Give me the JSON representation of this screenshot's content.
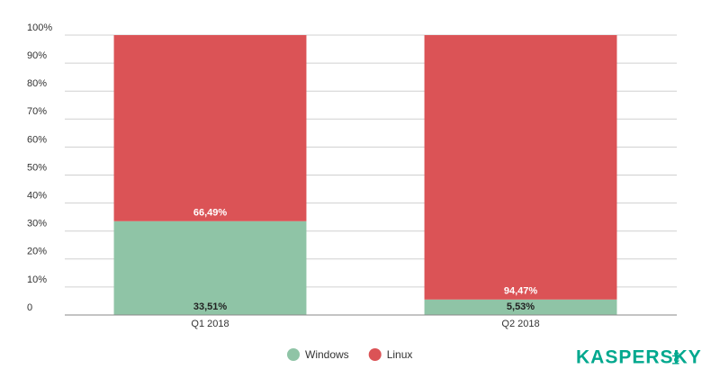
{
  "chart_data": {
    "type": "stacked_bar",
    "categories": [
      "Q1 2018",
      "Q2 2018"
    ],
    "series": [
      {
        "name": "Windows",
        "color": "#8fc4a6",
        "values": [
          33.51,
          5.53
        ],
        "value_labels": [
          "33,51%",
          "5,53%"
        ]
      },
      {
        "name": "Linux",
        "color": "#db5356",
        "values": [
          66.49,
          94.47
        ],
        "value_labels": [
          "66,49%",
          "94,47%"
        ]
      }
    ],
    "ylim": [
      0,
      100
    ],
    "yticks": [
      0,
      {
        "value": 10,
        "label": "10%"
      },
      {
        "value": 20,
        "label": "20%"
      },
      {
        "value": 30,
        "label": "30%"
      },
      {
        "value": 40,
        "label": "40%"
      },
      {
        "value": 50,
        "label": "50%"
      },
      {
        "value": 60,
        "label": "60%"
      },
      {
        "value": 70,
        "label": "70%"
      },
      {
        "value": 80,
        "label": "80%"
      },
      {
        "value": 90,
        "label": "90%"
      },
      {
        "value": 100,
        "label": "100%"
      }
    ],
    "grid": true,
    "legend": "bottom"
  },
  "branding": {
    "logo": "KASPERSKY",
    "logo_sub": "lab"
  }
}
